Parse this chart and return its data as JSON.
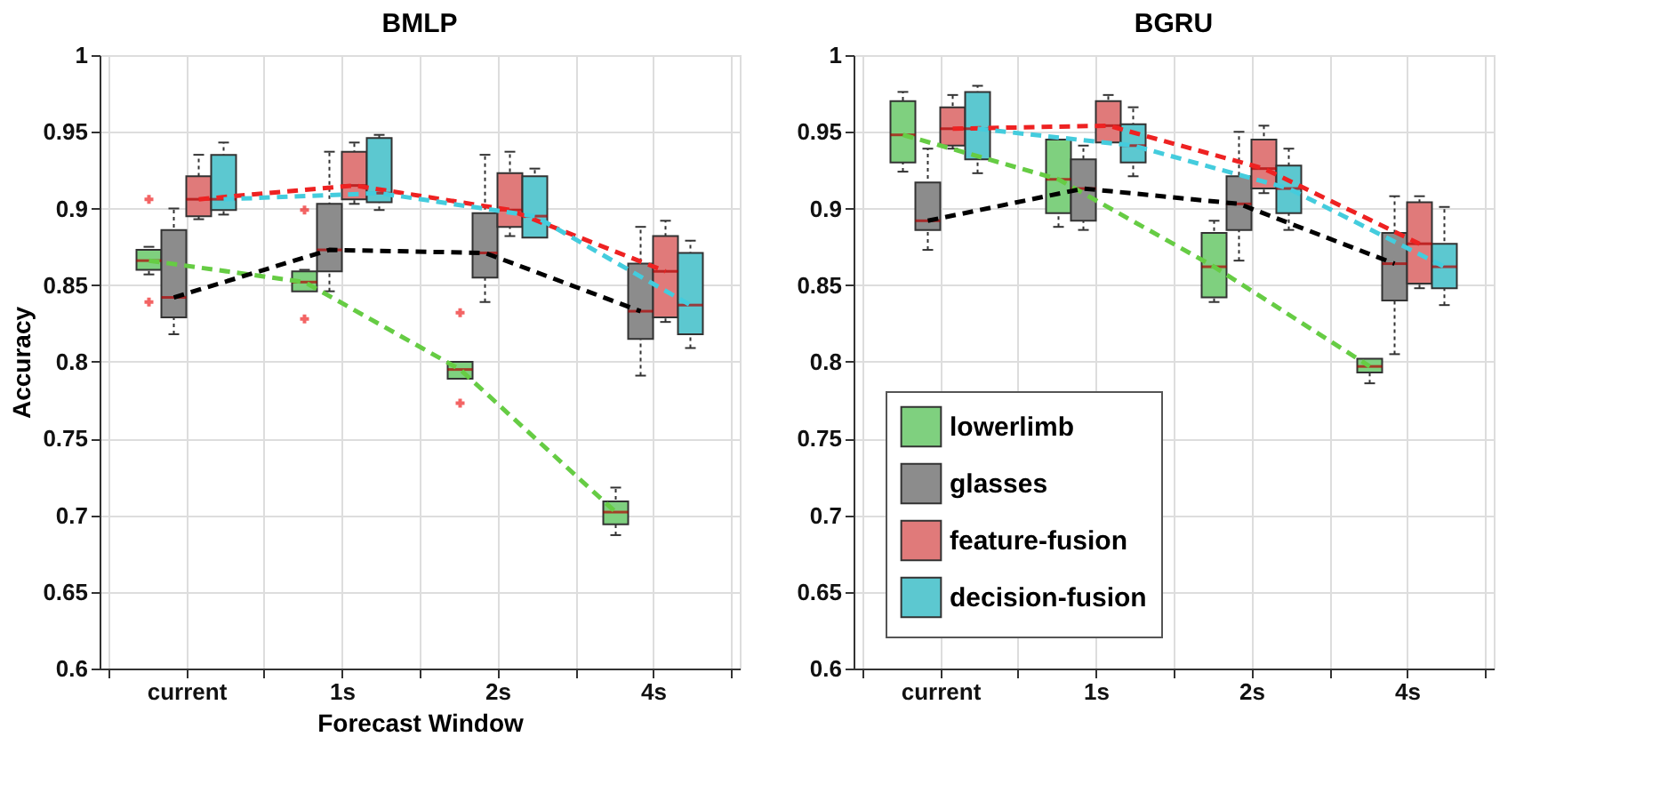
{
  "chart_data": [
    {
      "type": "box",
      "title": "BMLP",
      "xlabel": "Forecast Window",
      "ylabel": "Accuracy",
      "categories": [
        "current",
        "1s",
        "2s",
        "4s"
      ],
      "ylim": [
        0.6,
        1
      ],
      "yticks": [
        0.6,
        0.65,
        0.7,
        0.75,
        0.8,
        0.85,
        0.9,
        0.95,
        1
      ],
      "grid": true,
      "legend": false,
      "series": [
        {
          "color": "#7fd07f",
          "boxes": [
            {
              "low": 0.857,
              "q1": 0.86,
              "median": 0.866,
              "q3": 0.873,
              "high": 0.875,
              "outliers": [
                0.906,
                0.839
              ]
            },
            {
              "low": 0.846,
              "q1": 0.846,
              "median": 0.852,
              "q3": 0.859,
              "high": 0.86,
              "outliers": [
                0.899,
                0.828
              ]
            },
            {
              "low": 0.789,
              "q1": 0.789,
              "median": 0.795,
              "q3": 0.8,
              "high": 0.8,
              "outliers": [
                0.832,
                0.773
              ]
            },
            {
              "low": 0.687,
              "q1": 0.694,
              "median": 0.702,
              "q3": 0.709,
              "high": 0.718
            }
          ]
        },
        {
          "color": "#8c8c8c",
          "boxes": [
            {
              "low": 0.818,
              "q1": 0.829,
              "median": 0.842,
              "q3": 0.886,
              "high": 0.9
            },
            {
              "low": 0.846,
              "q1": 0.859,
              "median": 0.873,
              "q3": 0.903,
              "high": 0.937
            },
            {
              "low": 0.839,
              "q1": 0.855,
              "median": 0.871,
              "q3": 0.897,
              "high": 0.935
            },
            {
              "low": 0.791,
              "q1": 0.815,
              "median": 0.833,
              "q3": 0.864,
              "high": 0.888
            }
          ]
        },
        {
          "color": "#e07a7a",
          "boxes": [
            {
              "low": 0.893,
              "q1": 0.895,
              "median": 0.906,
              "q3": 0.921,
              "high": 0.935
            },
            {
              "low": 0.903,
              "q1": 0.906,
              "median": 0.915,
              "q3": 0.937,
              "high": 0.943
            },
            {
              "low": 0.882,
              "q1": 0.888,
              "median": 0.899,
              "q3": 0.923,
              "high": 0.937
            },
            {
              "low": 0.826,
              "q1": 0.829,
              "median": 0.859,
              "q3": 0.882,
              "high": 0.892
            }
          ]
        },
        {
          "color": "#5cc8d0",
          "boxes": [
            {
              "low": 0.896,
              "q1": 0.899,
              "median": 0.906,
              "q3": 0.935,
              "high": 0.943
            },
            {
              "low": 0.899,
              "q1": 0.904,
              "median": 0.91,
              "q3": 0.946,
              "high": 0.948
            },
            {
              "low": 0.881,
              "q1": 0.881,
              "median": 0.895,
              "q3": 0.921,
              "high": 0.926
            },
            {
              "low": 0.809,
              "q1": 0.818,
              "median": 0.837,
              "q3": 0.871,
              "high": 0.879
            }
          ]
        },
        {
          "type": "line",
          "color": "#66cc44",
          "line_style": "dashed",
          "values": [
            0.866,
            0.852,
            0.795,
            0.702
          ]
        },
        {
          "type": "line",
          "color": "#000000",
          "line_style": "dashed",
          "values": [
            0.842,
            0.873,
            0.871,
            0.833
          ]
        },
        {
          "type": "line",
          "color": "#ee2222",
          "line_style": "dashed",
          "values": [
            0.906,
            0.915,
            0.899,
            0.859
          ]
        },
        {
          "type": "line",
          "color": "#44ccdd",
          "line_style": "dashed",
          "values": [
            0.906,
            0.91,
            0.895,
            0.837
          ]
        }
      ]
    },
    {
      "type": "box",
      "title": "BGRU",
      "categories": [
        "current",
        "1s",
        "2s",
        "4s"
      ],
      "ylim": [
        0.6,
        1
      ],
      "yticks": [
        0.6,
        0.65,
        0.7,
        0.75,
        0.8,
        0.85,
        0.9,
        0.95,
        1
      ],
      "grid": true,
      "legend": "bottom left",
      "series": [
        {
          "name": "lowerlimb",
          "color": "#7fd07f",
          "boxes": [
            {
              "low": 0.924,
              "q1": 0.93,
              "median": 0.948,
              "q3": 0.97,
              "high": 0.976
            },
            {
              "low": 0.888,
              "q1": 0.897,
              "median": 0.919,
              "q3": 0.945,
              "high": 0.945
            },
            {
              "low": 0.839,
              "q1": 0.842,
              "median": 0.862,
              "q3": 0.884,
              "high": 0.892
            },
            {
              "low": 0.786,
              "q1": 0.793,
              "median": 0.797,
              "q3": 0.802,
              "high": 0.802
            }
          ]
        },
        {
          "name": "glasses",
          "color": "#8c8c8c",
          "boxes": [
            {
              "low": 0.873,
              "q1": 0.886,
              "median": 0.892,
              "q3": 0.917,
              "high": 0.939
            },
            {
              "low": 0.886,
              "q1": 0.892,
              "median": 0.913,
              "q3": 0.932,
              "high": 0.941
            },
            {
              "low": 0.866,
              "q1": 0.886,
              "median": 0.903,
              "q3": 0.921,
              "high": 0.95
            },
            {
              "low": 0.805,
              "q1": 0.84,
              "median": 0.864,
              "q3": 0.884,
              "high": 0.908
            }
          ]
        },
        {
          "name": "feature-fusion",
          "color": "#e07a7a",
          "boxes": [
            {
              "low": 0.939,
              "q1": 0.941,
              "median": 0.952,
              "q3": 0.966,
              "high": 0.974
            },
            {
              "low": 0.943,
              "q1": 0.943,
              "median": 0.954,
              "q3": 0.97,
              "high": 0.974
            },
            {
              "low": 0.91,
              "q1": 0.913,
              "median": 0.926,
              "q3": 0.945,
              "high": 0.954
            },
            {
              "low": 0.848,
              "q1": 0.851,
              "median": 0.877,
              "q3": 0.904,
              "high": 0.908
            }
          ]
        },
        {
          "name": "decision-fusion",
          "color": "#5cc8d0",
          "boxes": [
            {
              "low": 0.923,
              "q1": 0.932,
              "median": 0.952,
              "q3": 0.976,
              "high": 0.98
            },
            {
              "low": 0.921,
              "q1": 0.93,
              "median": 0.941,
              "q3": 0.955,
              "high": 0.966
            },
            {
              "low": 0.886,
              "q1": 0.897,
              "median": 0.913,
              "q3": 0.928,
              "high": 0.939
            },
            {
              "low": 0.837,
              "q1": 0.848,
              "median": 0.862,
              "q3": 0.877,
              "high": 0.901
            }
          ]
        },
        {
          "type": "line",
          "color": "#66cc44",
          "line_style": "dashed",
          "values": [
            0.948,
            0.919,
            0.862,
            0.797
          ]
        },
        {
          "type": "line",
          "color": "#000000",
          "line_style": "dashed",
          "values": [
            0.892,
            0.913,
            0.903,
            0.864
          ]
        },
        {
          "type": "line",
          "color": "#ee2222",
          "line_style": "dashed",
          "values": [
            0.952,
            0.954,
            0.926,
            0.877
          ]
        },
        {
          "type": "line",
          "color": "#44ccdd",
          "line_style": "dashed",
          "values": [
            0.952,
            0.941,
            0.913,
            0.862
          ]
        }
      ]
    }
  ]
}
